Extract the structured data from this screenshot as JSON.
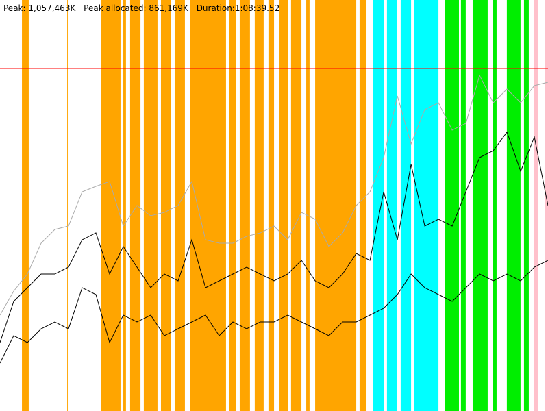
{
  "chart_data": {
    "type": "line",
    "peak_text": "Peak:",
    "peak": {
      "value": 1057463,
      "label": "1,057,463K"
    },
    "peak_allocated_text": "Peak allocated:",
    "peak_allocated": {
      "value": 861169,
      "label": "861,169K"
    },
    "duration_text": "Duration:",
    "duration": "1:08:39.52",
    "peak_line_color": "#ff0000",
    "xlim": [
      0,
      4119.52
    ],
    "ylim": [
      0,
      1268956
    ],
    "x": [
      0,
      103,
      206,
      309,
      412,
      515,
      618,
      721,
      824,
      927,
      1030,
      1133,
      1236,
      1339,
      1442,
      1545,
      1648,
      1751,
      1854,
      1957,
      2060,
      2163,
      2266,
      2369,
      2472,
      2575,
      2678,
      2781,
      2884,
      2987,
      3090,
      3193,
      3296,
      3399,
      3502,
      3605,
      3708,
      3811,
      3914,
      4017,
      4119.52
    ],
    "series": [
      {
        "color": "#aaaaaa",
        "values": [
          296100,
          370100,
          423000,
          518200,
          560400,
          571000,
          676800,
          693700,
          708500,
          571000,
          634500,
          602700,
          613300,
          634500,
          708500,
          528700,
          518200,
          518200,
          539300,
          549900,
          571000,
          528700,
          613300,
          592200,
          507600,
          549900,
          634500,
          676800,
          782500,
          972900,
          824800,
          930600,
          951700,
          867100,
          888300,
          1036300,
          951700,
          994000,
          951700,
          1004600,
          1015200
        ]
      },
      {
        "color": "#000000",
        "values": [
          211500,
          338400,
          380700,
          423000,
          423000,
          444100,
          528700,
          549900,
          423000,
          507600,
          444100,
          380700,
          423000,
          401800,
          528700,
          380700,
          401800,
          423000,
          444100,
          423000,
          401800,
          423000,
          465300,
          401800,
          380700,
          423000,
          486400,
          465300,
          676800,
          528700,
          761400,
          571000,
          592200,
          571000,
          676800,
          782500,
          803700,
          861169,
          740200,
          846000,
          634500
        ]
      },
      {
        "color": "#000000",
        "values": [
          148000,
          232600,
          211500,
          253800,
          274900,
          253800,
          380700,
          359500,
          211500,
          296100,
          274900,
          296100,
          232600,
          253800,
          274900,
          296100,
          232600,
          274900,
          253800,
          274900,
          274900,
          296100,
          274900,
          253800,
          232600,
          274900,
          274900,
          296100,
          317200,
          359500,
          423000,
          380700,
          359500,
          338400,
          380700,
          423000,
          401800,
          423000,
          401800,
          444100,
          465300
        ]
      }
    ],
    "events": [
      {
        "color": "#ffa500",
        "spans": [
          [
            165,
            216
          ],
          [
            505,
            515
          ],
          [
            762,
            906
          ],
          [
            927,
            947
          ],
          [
            978,
            1056
          ],
          [
            1081,
            1184
          ],
          [
            1210,
            1287
          ],
          [
            1313,
            1390
          ],
          [
            1431,
            1699
          ],
          [
            1725,
            1776
          ],
          [
            1802,
            1879
          ],
          [
            1915,
            1982
          ],
          [
            2018,
            2060
          ],
          [
            2101,
            2163
          ],
          [
            2188,
            2266
          ],
          [
            2302,
            2327
          ],
          [
            2369,
            2678
          ],
          [
            2703,
            2755
          ]
        ]
      },
      {
        "color": "#00ffff",
        "spans": [
          [
            2806,
            2884
          ],
          [
            2909,
            2986
          ],
          [
            3012,
            3090
          ],
          [
            3115,
            3296
          ]
        ]
      },
      {
        "color": "#00ee00",
        "spans": [
          [
            3347,
            3450
          ],
          [
            3465,
            3501
          ],
          [
            3553,
            3666
          ],
          [
            3707,
            3733
          ],
          [
            3810,
            3913
          ],
          [
            3939,
            3975
          ]
        ]
      },
      {
        "color": "#ffc0cb",
        "spans": [
          [
            4016,
            4047
          ],
          [
            4094,
            4119.52
          ]
        ]
      }
    ]
  }
}
